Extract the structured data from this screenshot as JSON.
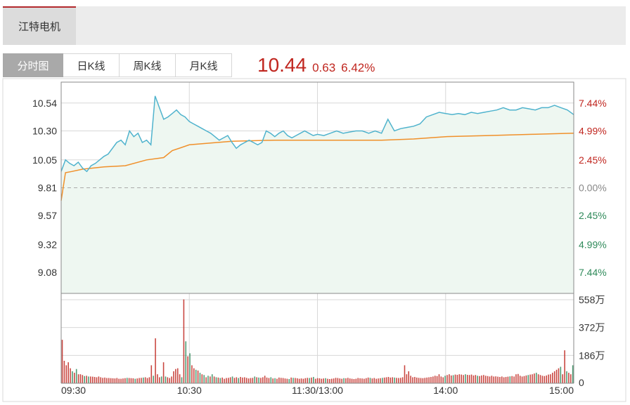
{
  "stock_tab": {
    "label": "江特电机"
  },
  "period_tabs": [
    {
      "label": "分时图",
      "active": true
    },
    {
      "label": "日K线",
      "active": false
    },
    {
      "label": "周K线",
      "active": false
    },
    {
      "label": "月K线",
      "active": false
    }
  ],
  "quote": {
    "price": "10.44",
    "change": "0.63",
    "change_pct": "6.42%"
  },
  "colors": {
    "up": "#c0261f",
    "down": "#2f8a5a",
    "price_line": "#4fb3cd",
    "avg_line": "#f0902a",
    "fill": "#eef7f1",
    "grid": "#d8d8d8"
  },
  "chart_data": {
    "type": "line",
    "prev_close": 9.81,
    "ylim": [
      8.9,
      10.72
    ],
    "y_ticks": [
      10.54,
      10.3,
      10.05,
      9.81,
      9.57,
      9.32,
      9.08
    ],
    "y_tick_labels": [
      "10.54",
      "10.30",
      "10.05",
      "9.81",
      "9.57",
      "9.32",
      "9.08"
    ],
    "pct_tick_labels": [
      "7.44%",
      "4.99%",
      "2.45%",
      "0.00%",
      "2.45%",
      "4.99%",
      "7.44%"
    ],
    "x_tick_labels": [
      "09:30",
      "10:30",
      "11:30/13:00",
      "14:00",
      "15:00"
    ],
    "price_series": {
      "times": [
        0,
        2,
        4,
        6,
        8,
        10,
        12,
        14,
        16,
        18,
        20,
        22,
        24,
        26,
        28,
        30,
        32,
        34,
        36,
        38,
        40,
        42,
        44,
        46,
        48,
        50,
        52,
        54,
        56,
        58,
        60,
        62,
        64,
        66,
        68,
        70,
        72,
        74,
        76,
        78,
        80,
        82,
        84,
        86,
        88,
        90,
        92,
        94,
        96,
        98,
        100,
        102,
        104,
        106,
        108,
        110,
        112,
        114,
        116,
        118,
        120,
        123,
        126,
        129,
        132,
        135,
        138,
        141,
        144,
        147,
        150,
        153,
        156,
        159,
        162,
        165,
        168,
        171,
        174,
        177,
        180,
        183,
        186,
        189,
        192,
        195,
        198,
        201,
        204,
        207,
        210,
        213,
        216,
        219,
        222,
        225,
        228,
        231,
        234,
        237,
        240
      ],
      "values": [
        9.95,
        10.05,
        10.02,
        10.0,
        10.03,
        9.98,
        9.95,
        10.0,
        10.02,
        10.05,
        10.08,
        10.1,
        10.15,
        10.2,
        10.22,
        10.18,
        10.3,
        10.25,
        10.28,
        10.2,
        10.22,
        10.18,
        10.6,
        10.5,
        10.4,
        10.42,
        10.45,
        10.48,
        10.44,
        10.42,
        10.38,
        10.36,
        10.34,
        10.32,
        10.3,
        10.28,
        10.25,
        10.22,
        10.24,
        10.26,
        10.2,
        10.15,
        10.18,
        10.2,
        10.22,
        10.2,
        10.18,
        10.2,
        10.3,
        10.28,
        10.25,
        10.28,
        10.3,
        10.26,
        10.24,
        10.26,
        10.28,
        10.3,
        10.28,
        10.26,
        10.27,
        10.26,
        10.28,
        10.3,
        10.28,
        10.29,
        10.3,
        10.3,
        10.28,
        10.3,
        10.28,
        10.4,
        10.3,
        10.32,
        10.33,
        10.34,
        10.36,
        10.42,
        10.44,
        10.46,
        10.45,
        10.44,
        10.45,
        10.44,
        10.46,
        10.45,
        10.46,
        10.47,
        10.48,
        10.5,
        10.48,
        10.48,
        10.5,
        10.49,
        10.48,
        10.5,
        10.5,
        10.52,
        10.5,
        10.48,
        10.44
      ]
    },
    "avg_series": {
      "times": [
        0,
        2,
        5,
        10,
        20,
        30,
        40,
        48,
        52,
        60,
        80,
        100,
        120,
        150,
        165,
        180,
        200,
        220,
        240
      ],
      "values": [
        9.7,
        9.94,
        9.95,
        9.97,
        9.99,
        10.0,
        10.05,
        10.07,
        10.13,
        10.18,
        10.21,
        10.22,
        10.22,
        10.22,
        10.23,
        10.25,
        10.26,
        10.27,
        10.28
      ]
    },
    "volume": {
      "ylim": [
        0,
        600
      ],
      "y_ticks": [
        558,
        372,
        186,
        0
      ],
      "y_tick_labels": [
        "558万",
        "372万",
        "186万",
        "0"
      ],
      "values": [
        290,
        150,
        120,
        140,
        100,
        80,
        70,
        95,
        60,
        60,
        55,
        48,
        50,
        45,
        45,
        44,
        42,
        40,
        45,
        40,
        36,
        38,
        35,
        35,
        34,
        33,
        32,
        35,
        30,
        30,
        32,
        34,
        36,
        35,
        34,
        33,
        30,
        32,
        35,
        36,
        38,
        40,
        35,
        40,
        120,
        50,
        300,
        60,
        40,
        45,
        140,
        45,
        40,
        35,
        45,
        80,
        95,
        100,
        60,
        40,
        560,
        280,
        180,
        200,
        120,
        100,
        90,
        85,
        70,
        60,
        55,
        40,
        50,
        45,
        60,
        45,
        40,
        38,
        35,
        38,
        30,
        35,
        36,
        40,
        45,
        36,
        40,
        35,
        42,
        38,
        40,
        36,
        32,
        35,
        36,
        45,
        40,
        38,
        36,
        40,
        50,
        38,
        35,
        40,
        32,
        34,
        30,
        38,
        36,
        35,
        32,
        30,
        28,
        38,
        36,
        35,
        33,
        30,
        32,
        30,
        34,
        36,
        35,
        38,
        42,
        30,
        34,
        33,
        30,
        32,
        34,
        30,
        28,
        30,
        32,
        36,
        35,
        32,
        30,
        34,
        33,
        36,
        32,
        30,
        28,
        30,
        35,
        33,
        32,
        30,
        34,
        38,
        36,
        32,
        35,
        30,
        32,
        34,
        36,
        38,
        40,
        42,
        38,
        40,
        38,
        36,
        35,
        36,
        40,
        120,
        60,
        80,
        50,
        40,
        42,
        38,
        36,
        35,
        34,
        36,
        38,
        40,
        42,
        45,
        50,
        48,
        60,
        45,
        40,
        50,
        55,
        60,
        52,
        54,
        58,
        56,
        60,
        58,
        55,
        60,
        56,
        55,
        58,
        52,
        55,
        50,
        48,
        52,
        55,
        50,
        48,
        45,
        50,
        45,
        46,
        44,
        42,
        45,
        40,
        42,
        44,
        46,
        48,
        45,
        60,
        62,
        50,
        45,
        48,
        52,
        55,
        58,
        60,
        65,
        70,
        60,
        55,
        50,
        48,
        52,
        58,
        60,
        70,
        80,
        90,
        100,
        110,
        60,
        220,
        80,
        70,
        60,
        120
      ]
    }
  }
}
